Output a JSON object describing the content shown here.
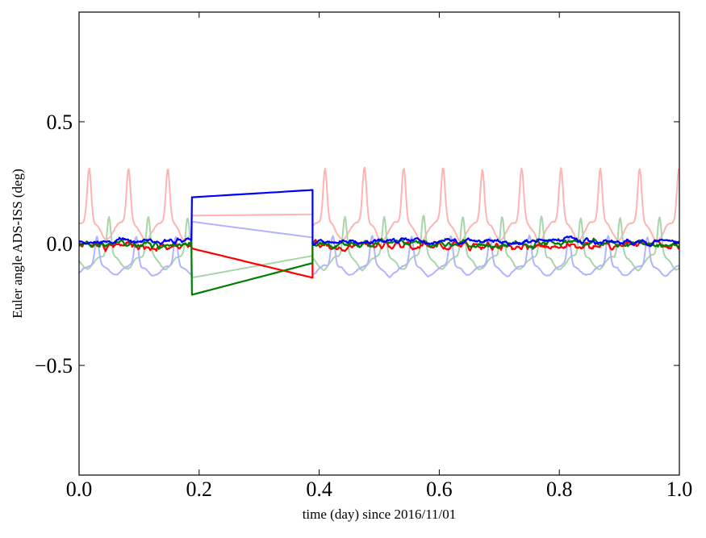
{
  "chart_data": {
    "type": "line",
    "title": "",
    "xlabel": "time (day) since 2016/11/01",
    "ylabel": "Euler angle ADS-ISS (deg)",
    "xlim": [
      0.0,
      1.0
    ],
    "ylim": [
      -0.95,
      0.95
    ],
    "grid": false,
    "legend": "none",
    "x_ticks": [
      0.0,
      0.2,
      0.4,
      0.6,
      0.8,
      1.0
    ],
    "x_tick_labels": [
      "0.0",
      "0.2",
      "0.4",
      "0.6",
      "0.8",
      "1.0"
    ],
    "y_ticks": [
      -0.5,
      0.0,
      0.5
    ],
    "y_tick_labels": [
      "−0.5",
      "0.0",
      "0.5"
    ],
    "gap": [
      0.188,
      0.389
    ],
    "series": [
      {
        "color": "#ffb3b3",
        "faded": true,
        "pattern": "periodic",
        "period": 0.0655,
        "phase": 0.007,
        "base": 0.09,
        "amp": 0.22,
        "gap_start": 0.115,
        "gap_end": 0.12
      },
      {
        "color": "#a9d6a9",
        "faded": true,
        "pattern": "periodic",
        "period": 0.0655,
        "phase": 0.04,
        "base": -0.05,
        "amp": 0.16,
        "gap_start": -0.14,
        "gap_end": -0.05
      },
      {
        "color": "#b3b3ff",
        "faded": true,
        "pattern": "periodic",
        "period": 0.0655,
        "phase": 0.02,
        "base": -0.09,
        "amp": 0.12,
        "gap_start": 0.09,
        "gap_end": 0.025
      },
      {
        "color": "#ff0000",
        "faded": false,
        "pattern": "noisy",
        "base": -0.01,
        "amp": 0.03,
        "gap_start": -0.02,
        "gap_end": -0.14
      },
      {
        "color": "#008000",
        "faded": false,
        "pattern": "noisy",
        "base": 0.0,
        "amp": 0.025,
        "gap_start": -0.21,
        "gap_end": -0.08
      },
      {
        "color": "#0000ff",
        "faded": false,
        "pattern": "noisy",
        "base": 0.01,
        "amp": 0.02,
        "gap_start": 0.19,
        "gap_end": 0.22
      }
    ]
  }
}
